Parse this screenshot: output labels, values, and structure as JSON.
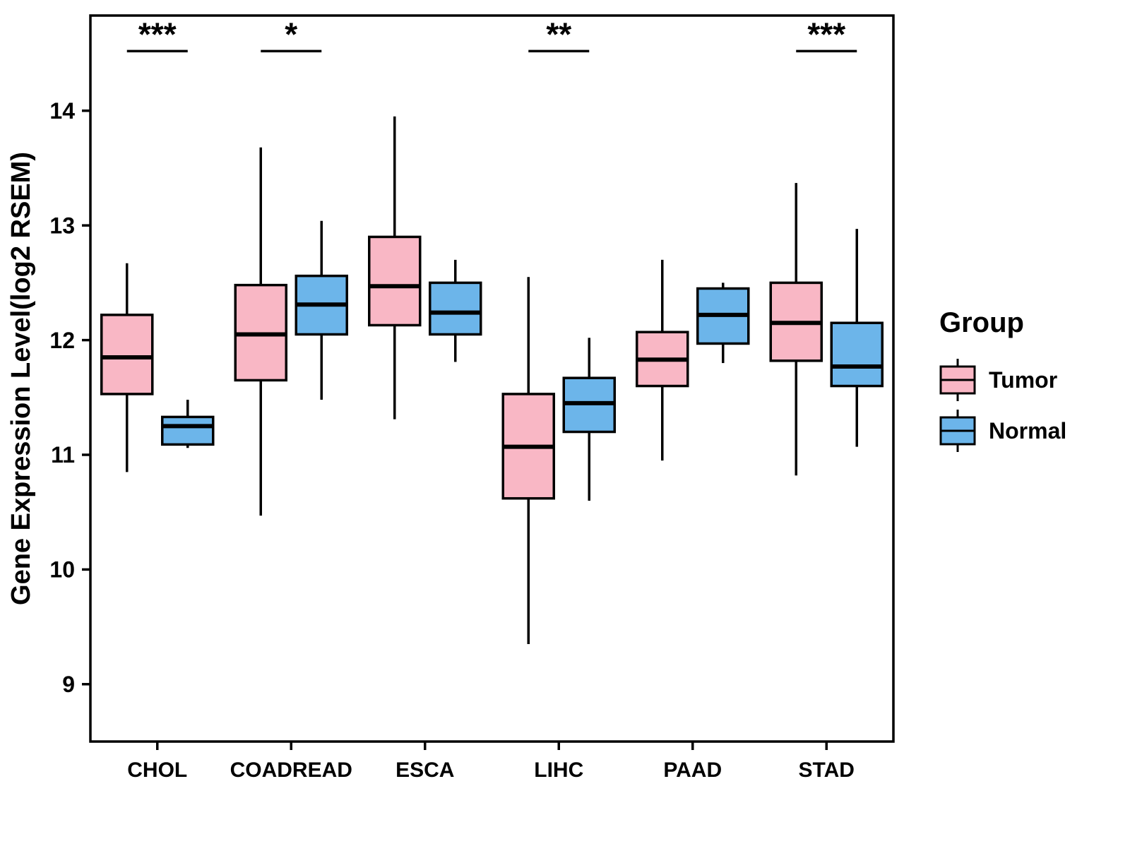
{
  "chart_data": {
    "type": "boxplot",
    "title": "",
    "xlabel": "",
    "ylabel": "Gene Expression Level(log2 RSEM)",
    "ylim": [
      8.5,
      14.83
    ],
    "yticks": [
      9,
      10,
      11,
      12,
      13,
      14
    ],
    "categories": [
      "CHOL",
      "COADREAD",
      "ESCA",
      "LIHC",
      "PAAD",
      "STAD"
    ],
    "grid": false,
    "stroke_color": "#000000",
    "legend": {
      "title": "Group",
      "position": "right"
    },
    "series": [
      {
        "name": "Tumor",
        "fill": "#F9B7C5",
        "boxes": [
          {
            "category": "CHOL",
            "low": 10.85,
            "q1": 11.53,
            "median": 11.85,
            "q3": 12.22,
            "high": 12.67
          },
          {
            "category": "COADREAD",
            "low": 10.47,
            "q1": 11.65,
            "median": 12.05,
            "q3": 12.48,
            "high": 13.68
          },
          {
            "category": "ESCA",
            "low": 11.31,
            "q1": 12.13,
            "median": 12.47,
            "q3": 12.9,
            "high": 13.95
          },
          {
            "category": "LIHC",
            "low": 9.35,
            "q1": 10.62,
            "median": 11.07,
            "q3": 11.53,
            "high": 12.55
          },
          {
            "category": "PAAD",
            "low": 10.95,
            "q1": 11.6,
            "median": 11.83,
            "q3": 12.07,
            "high": 12.7
          },
          {
            "category": "STAD",
            "low": 10.82,
            "q1": 11.82,
            "median": 12.15,
            "q3": 12.5,
            "high": 13.37
          }
        ]
      },
      {
        "name": "Normal",
        "fill": "#6CB5EA",
        "boxes": [
          {
            "category": "CHOL",
            "low": 11.06,
            "q1": 11.09,
            "median": 11.25,
            "q3": 11.33,
            "high": 11.48
          },
          {
            "category": "COADREAD",
            "low": 11.48,
            "q1": 12.05,
            "median": 12.31,
            "q3": 12.56,
            "high": 13.04
          },
          {
            "category": "ESCA",
            "low": 11.81,
            "q1": 12.05,
            "median": 12.24,
            "q3": 12.5,
            "high": 12.7
          },
          {
            "category": "LIHC",
            "low": 10.6,
            "q1": 11.2,
            "median": 11.45,
            "q3": 11.67,
            "high": 12.02
          },
          {
            "category": "PAAD",
            "low": 11.8,
            "q1": 11.97,
            "median": 12.22,
            "q3": 12.45,
            "high": 12.5
          },
          {
            "category": "STAD",
            "low": 11.07,
            "q1": 11.6,
            "median": 11.77,
            "q3": 12.15,
            "high": 12.97
          }
        ]
      }
    ],
    "significance_y": 14.52,
    "significance": [
      {
        "category": "CHOL",
        "label": "***"
      },
      {
        "category": "COADREAD",
        "label": "*"
      },
      {
        "category": "LIHC",
        "label": "**"
      },
      {
        "category": "STAD",
        "label": "***"
      }
    ]
  }
}
